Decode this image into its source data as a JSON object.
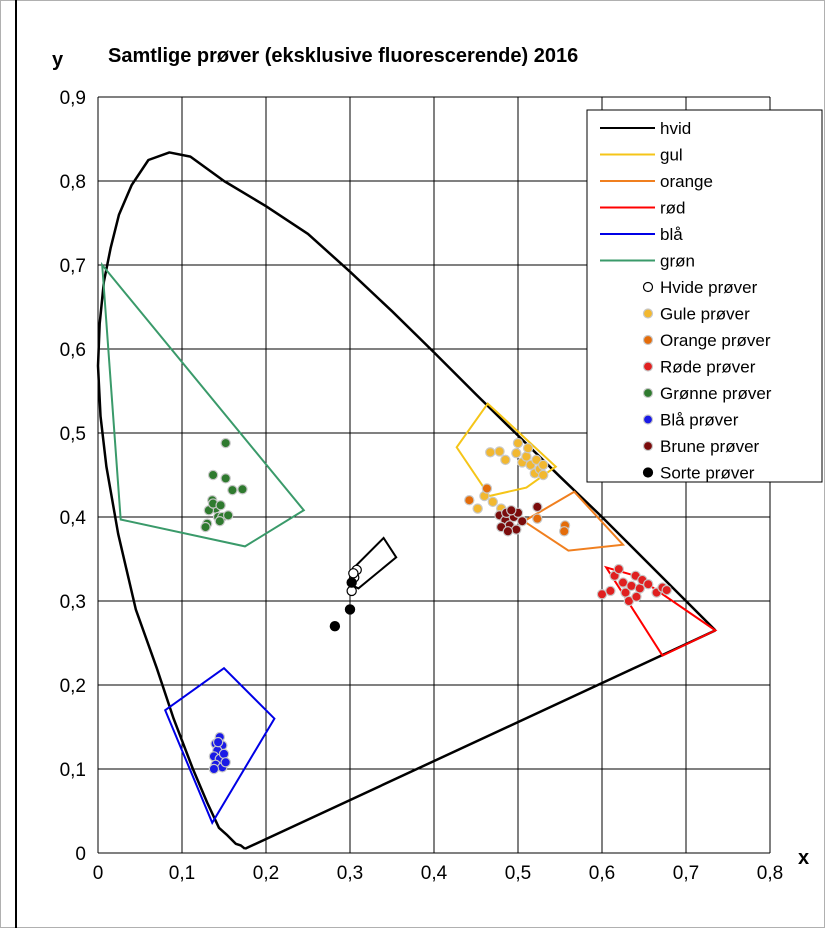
{
  "chart_data": {
    "type": "scatter",
    "title": "Samtlige prøver (eksklusive fluorescerende) 2016",
    "xlabel": "x",
    "ylabel": "y",
    "xlim": [
      0,
      0.8
    ],
    "ylim": [
      0,
      0.9
    ],
    "grid": true,
    "legend_position": "top-right",
    "x_ticks": [
      "0",
      "0,1",
      "0,2",
      "0,3",
      "0,4",
      "0,5",
      "0,6",
      "0,7",
      "0,8"
    ],
    "y_ticks": [
      "0",
      "0,1",
      "0,2",
      "0,3",
      "0,4",
      "0,5",
      "0,6",
      "0,7",
      "0,8",
      "0,9"
    ],
    "spectral_locus": [
      [
        0.175,
        0.005
      ],
      [
        0.17,
        0.009
      ],
      [
        0.164,
        0.011
      ],
      [
        0.153,
        0.022
      ],
      [
        0.144,
        0.03
      ],
      [
        0.13,
        0.06
      ],
      [
        0.113,
        0.1
      ],
      [
        0.09,
        0.16
      ],
      [
        0.07,
        0.22
      ],
      [
        0.045,
        0.29
      ],
      [
        0.024,
        0.38
      ],
      [
        0.01,
        0.46
      ],
      [
        0.003,
        0.52
      ],
      [
        0.0,
        0.58
      ],
      [
        0.002,
        0.63
      ],
      [
        0.007,
        0.68
      ],
      [
        0.015,
        0.72
      ],
      [
        0.025,
        0.76
      ],
      [
        0.04,
        0.795
      ],
      [
        0.06,
        0.825
      ],
      [
        0.085,
        0.834
      ],
      [
        0.11,
        0.829
      ],
      [
        0.15,
        0.8
      ],
      [
        0.2,
        0.77
      ],
      [
        0.25,
        0.737
      ],
      [
        0.3,
        0.692
      ],
      [
        0.35,
        0.645
      ],
      [
        0.4,
        0.596
      ],
      [
        0.45,
        0.546
      ],
      [
        0.5,
        0.497
      ],
      [
        0.55,
        0.448
      ],
      [
        0.6,
        0.4
      ],
      [
        0.65,
        0.35
      ],
      [
        0.7,
        0.3
      ],
      [
        0.735,
        0.265
      ]
    ],
    "purple_line": [
      [
        0.735,
        0.265
      ],
      [
        0.175,
        0.005
      ]
    ],
    "series": [
      {
        "name": "hvid",
        "kind": "region",
        "color": "#000000",
        "points": [
          [
            0.3,
            0.32
          ],
          [
            0.305,
            0.34
          ],
          [
            0.34,
            0.375
          ],
          [
            0.355,
            0.352
          ],
          [
            0.31,
            0.315
          ]
        ]
      },
      {
        "name": "gul",
        "kind": "region",
        "color": "#f5c518",
        "points": [
          [
            0.464,
            0.535
          ],
          [
            0.427,
            0.483
          ],
          [
            0.466,
            0.425
          ],
          [
            0.51,
            0.435
          ],
          [
            0.545,
            0.46
          ]
        ]
      },
      {
        "name": "orange",
        "kind": "region",
        "color": "#f07f1f",
        "points": [
          [
            0.567,
            0.43
          ],
          [
            0.507,
            0.395
          ],
          [
            0.56,
            0.36
          ],
          [
            0.625,
            0.367
          ]
        ]
      },
      {
        "name": "rød",
        "kind": "region",
        "color": "#ff0000",
        "points": [
          [
            0.64,
            0.33
          ],
          [
            0.605,
            0.34
          ],
          [
            0.672,
            0.235
          ],
          [
            0.735,
            0.265
          ]
        ]
      },
      {
        "name": "blå",
        "kind": "region",
        "color": "#0000e6",
        "points": [
          [
            0.08,
            0.17
          ],
          [
            0.15,
            0.22
          ],
          [
            0.21,
            0.16
          ],
          [
            0.136,
            0.036
          ]
        ]
      },
      {
        "name": "grøn",
        "kind": "region",
        "color": "#3a9a6a",
        "points": [
          [
            0.005,
            0.7
          ],
          [
            0.245,
            0.408
          ],
          [
            0.175,
            0.365
          ],
          [
            0.027,
            0.397
          ]
        ]
      },
      {
        "name": "Hvide prøver",
        "kind": "points",
        "color": "#ffffff",
        "stroke": "#000000",
        "points": [
          [
            0.302,
            0.312
          ],
          [
            0.305,
            0.328
          ],
          [
            0.308,
            0.337
          ],
          [
            0.304,
            0.333
          ]
        ]
      },
      {
        "name": "Gule prøver",
        "kind": "points",
        "color": "#f2b830",
        "stroke": "#c8c8c8",
        "points": [
          [
            0.467,
            0.477
          ],
          [
            0.478,
            0.478
          ],
          [
            0.485,
            0.468
          ],
          [
            0.5,
            0.488
          ],
          [
            0.498,
            0.476
          ],
          [
            0.505,
            0.465
          ],
          [
            0.51,
            0.472
          ],
          [
            0.515,
            0.462
          ],
          [
            0.52,
            0.452
          ],
          [
            0.522,
            0.468
          ],
          [
            0.526,
            0.457
          ],
          [
            0.53,
            0.462
          ],
          [
            0.47,
            0.418
          ],
          [
            0.48,
            0.41
          ],
          [
            0.452,
            0.41
          ],
          [
            0.46,
            0.425
          ],
          [
            0.512,
            0.482
          ],
          [
            0.53,
            0.45
          ]
        ]
      },
      {
        "name": "Orange prøver",
        "kind": "points",
        "color": "#e46c0a",
        "stroke": "#c8c8c8",
        "points": [
          [
            0.442,
            0.42
          ],
          [
            0.463,
            0.434
          ],
          [
            0.523,
            0.398
          ],
          [
            0.556,
            0.39
          ],
          [
            0.555,
            0.383
          ]
        ]
      },
      {
        "name": "Røde prøver",
        "kind": "points",
        "color": "#e02020",
        "stroke": "#c8c8c8",
        "points": [
          [
            0.6,
            0.308
          ],
          [
            0.61,
            0.312
          ],
          [
            0.615,
            0.33
          ],
          [
            0.62,
            0.338
          ],
          [
            0.625,
            0.322
          ],
          [
            0.628,
            0.31
          ],
          [
            0.635,
            0.318
          ],
          [
            0.64,
            0.33
          ],
          [
            0.645,
            0.315
          ],
          [
            0.648,
            0.325
          ],
          [
            0.655,
            0.32
          ],
          [
            0.665,
            0.31
          ],
          [
            0.672,
            0.316
          ],
          [
            0.677,
            0.313
          ],
          [
            0.632,
            0.3
          ],
          [
            0.641,
            0.305
          ]
        ]
      },
      {
        "name": "Grønne prøver",
        "kind": "points",
        "color": "#2f7a2f",
        "stroke": "#c8c8c8",
        "points": [
          [
            0.152,
            0.488
          ],
          [
            0.137,
            0.45
          ],
          [
            0.152,
            0.446
          ],
          [
            0.136,
            0.42
          ],
          [
            0.14,
            0.41
          ],
          [
            0.143,
            0.4
          ],
          [
            0.132,
            0.408
          ],
          [
            0.148,
            0.4
          ],
          [
            0.155,
            0.402
          ],
          [
            0.13,
            0.392
          ],
          [
            0.128,
            0.388
          ],
          [
            0.145,
            0.395
          ],
          [
            0.16,
            0.432
          ],
          [
            0.172,
            0.433
          ],
          [
            0.137,
            0.416
          ],
          [
            0.146,
            0.414
          ]
        ]
      },
      {
        "name": "Blå prøver",
        "kind": "points",
        "color": "#1a1ae6",
        "stroke": "#c8c8c8",
        "points": [
          [
            0.145,
            0.138
          ],
          [
            0.14,
            0.13
          ],
          [
            0.148,
            0.128
          ],
          [
            0.142,
            0.122
          ],
          [
            0.138,
            0.115
          ],
          [
            0.145,
            0.112
          ],
          [
            0.15,
            0.118
          ],
          [
            0.14,
            0.105
          ],
          [
            0.148,
            0.102
          ],
          [
            0.152,
            0.108
          ],
          [
            0.143,
            0.132
          ],
          [
            0.138,
            0.1
          ]
        ]
      },
      {
        "name": "Brune prøver",
        "kind": "points",
        "color": "#7b0c0c",
        "stroke": "#c8c8c8",
        "points": [
          [
            0.478,
            0.402
          ],
          [
            0.485,
            0.396
          ],
          [
            0.49,
            0.39
          ],
          [
            0.495,
            0.4
          ],
          [
            0.5,
            0.405
          ],
          [
            0.505,
            0.395
          ],
          [
            0.48,
            0.388
          ],
          [
            0.486,
            0.405
          ],
          [
            0.492,
            0.408
          ],
          [
            0.498,
            0.385
          ],
          [
            0.523,
            0.412
          ],
          [
            0.488,
            0.383
          ]
        ]
      },
      {
        "name": "Sorte prøver",
        "kind": "points",
        "color": "#000000",
        "stroke": "#000000",
        "points": [
          [
            0.3,
            0.29
          ],
          [
            0.282,
            0.27
          ],
          [
            0.302,
            0.322
          ]
        ]
      }
    ]
  }
}
